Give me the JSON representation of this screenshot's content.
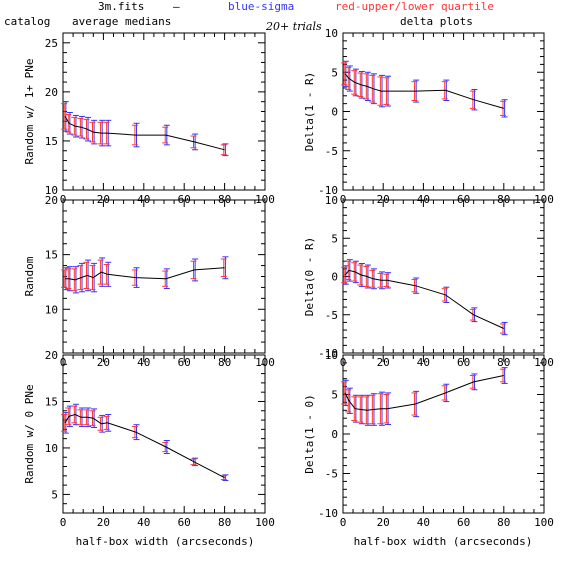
{
  "header": {
    "filename": "3m.fits",
    "dash": "–",
    "blue_label": "blue-sigma",
    "red_label": "red-upper/lower quartile",
    "left_col_title": "catalog",
    "left_col_subtitle": "average medians",
    "trials": "20+ trials",
    "right_col_title": "delta plots",
    "xlabel_left": "half-box width (arcseconds)",
    "xlabel_right": "half-box width (arcseconds)"
  },
  "colors": {
    "line": "#000000",
    "sigma": "#3333ff",
    "quartile": "#ff3333"
  },
  "chart_data": [
    {
      "type": "line",
      "ylabel": "Random w/ 1+ PNe",
      "xlim": [
        0,
        100
      ],
      "ylim": [
        10,
        26
      ],
      "xticks": [
        0,
        20,
        40,
        60,
        80,
        100
      ],
      "yticks": [
        10,
        15,
        20,
        25
      ],
      "x": [
        1,
        3,
        6,
        9,
        12,
        15,
        19,
        22,
        36,
        51,
        65,
        80
      ],
      "y": [
        17.5,
        16.8,
        16.5,
        16.4,
        16.2,
        15.9,
        15.8,
        15.8,
        15.6,
        15.6,
        14.9,
        14.1
      ],
      "sigma": [
        1.5,
        1.1,
        1.1,
        1.1,
        1.2,
        1.2,
        1.3,
        1.3,
        1.2,
        1.0,
        0.8,
        0.6
      ],
      "quartile": [
        1.3,
        0.9,
        0.9,
        0.9,
        1.0,
        1.0,
        1.1,
        1.1,
        1.0,
        0.8,
        0.6,
        0.5
      ]
    },
    {
      "type": "line",
      "ylabel": "Delta(1 - R)",
      "xlim": [
        0,
        100
      ],
      "ylim": [
        -10,
        10
      ],
      "xticks": [
        0,
        20,
        40,
        60,
        80,
        100
      ],
      "yticks": [
        -10,
        -5,
        0,
        5,
        10
      ],
      "x": [
        1,
        3,
        6,
        9,
        12,
        15,
        19,
        22,
        36,
        51,
        65,
        80
      ],
      "y": [
        4.8,
        4.2,
        3.7,
        3.4,
        3.2,
        2.9,
        2.6,
        2.6,
        2.6,
        2.7,
        1.5,
        0.4
      ],
      "sigma": [
        1.6,
        1.6,
        1.7,
        1.7,
        1.8,
        1.9,
        2.0,
        1.9,
        1.4,
        1.3,
        1.3,
        1.1
      ],
      "quartile": [
        1.4,
        1.4,
        1.5,
        1.5,
        1.6,
        1.7,
        1.8,
        1.7,
        1.2,
        1.1,
        1.1,
        0.9
      ]
    },
    {
      "type": "line",
      "ylabel": "Random",
      "xlim": [
        0,
        100
      ],
      "ylim": [
        6,
        20
      ],
      "xticks": [
        0,
        20,
        40,
        60,
        80,
        100
      ],
      "yticks": [
        10,
        15,
        20
      ],
      "x": [
        1,
        3,
        6,
        9,
        12,
        15,
        19,
        22,
        36,
        51,
        65,
        80
      ],
      "y": [
        12.8,
        12.8,
        12.7,
        12.9,
        13.1,
        12.9,
        13.4,
        13.2,
        12.9,
        12.8,
        13.6,
        13.8
      ],
      "sigma": [
        1.0,
        1.1,
        1.2,
        1.3,
        1.4,
        1.3,
        1.3,
        1.1,
        0.9,
        0.9,
        1.0,
        1.0
      ],
      "quartile": [
        0.8,
        0.9,
        1.0,
        1.1,
        1.2,
        1.1,
        1.1,
        0.9,
        0.7,
        0.7,
        0.8,
        0.8
      ]
    },
    {
      "type": "line",
      "ylabel": "Delta(0 - R)",
      "xlim": [
        0,
        100
      ],
      "ylim": [
        -10,
        10
      ],
      "xticks": [
        0,
        20,
        40,
        60,
        80,
        100
      ],
      "yticks": [
        -10,
        -5,
        0,
        5,
        10
      ],
      "x": [
        1,
        3,
        6,
        9,
        12,
        15,
        19,
        22,
        36,
        51,
        65,
        80
      ],
      "y": [
        0.2,
        0.8,
        0.6,
        0.2,
        0.0,
        -0.3,
        -0.5,
        -0.5,
        -1.2,
        -2.4,
        -5.0,
        -6.8
      ],
      "sigma": [
        1.2,
        1.4,
        1.4,
        1.5,
        1.5,
        1.3,
        1.1,
        1.0,
        1.0,
        1.0,
        0.9,
        0.8
      ],
      "quartile": [
        1.0,
        1.2,
        1.2,
        1.3,
        1.3,
        1.1,
        0.9,
        0.8,
        0.8,
        0.8,
        0.7,
        0.6
      ]
    },
    {
      "type": "line",
      "ylabel": "Random w/ 0 PNe",
      "xlim": [
        0,
        100
      ],
      "ylim": [
        3,
        20
      ],
      "xticks": [
        0,
        20,
        40,
        60,
        80,
        100
      ],
      "yticks": [
        5,
        10,
        15,
        20
      ],
      "x": [
        1,
        3,
        6,
        9,
        12,
        15,
        19,
        22,
        36,
        51,
        65,
        80
      ],
      "y": [
        12.7,
        13.4,
        13.6,
        13.3,
        13.3,
        13.2,
        12.6,
        12.7,
        11.7,
        10.1,
        8.5,
        6.8
      ],
      "sigma": [
        1.1,
        1.1,
        1.1,
        1.0,
        1.0,
        1.0,
        0.9,
        0.9,
        0.8,
        0.7,
        0.4,
        0.3
      ],
      "quartile": [
        0.9,
        0.9,
        0.9,
        0.8,
        0.8,
        0.8,
        0.7,
        0.7,
        0.6,
        0.5,
        0.3,
        0.2
      ]
    },
    {
      "type": "line",
      "ylabel": "Delta(1 - 0)",
      "xlim": [
        0,
        100
      ],
      "ylim": [
        -10,
        10
      ],
      "xticks": [
        0,
        20,
        40,
        60,
        80,
        100
      ],
      "yticks": [
        -10,
        -5,
        0,
        5,
        10
      ],
      "x": [
        1,
        3,
        6,
        9,
        12,
        15,
        19,
        22,
        36,
        51,
        65,
        80
      ],
      "y": [
        5.2,
        4.2,
        3.2,
        3.1,
        3.0,
        3.1,
        3.2,
        3.2,
        3.8,
        5.2,
        6.6,
        7.4
      ],
      "sigma": [
        1.6,
        1.6,
        1.7,
        1.8,
        1.9,
        2.0,
        2.1,
        2.0,
        1.6,
        1.1,
        1.0,
        1.0
      ],
      "quartile": [
        1.4,
        1.4,
        1.5,
        1.6,
        1.7,
        1.8,
        1.9,
        1.8,
        1.4,
        0.9,
        0.8,
        0.8
      ]
    }
  ]
}
